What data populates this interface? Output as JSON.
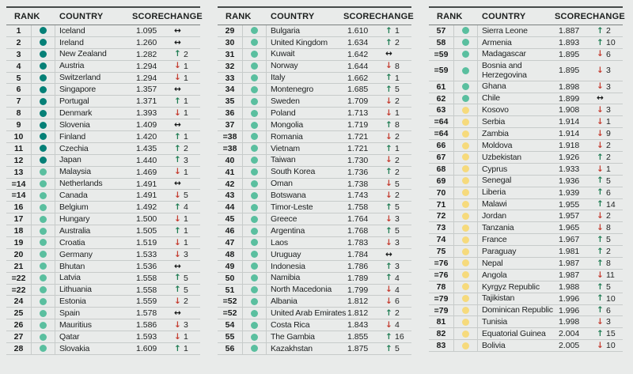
{
  "colors": {
    "background": "#e9ebea",
    "very_high_dot": "#058077",
    "high_dot": "#5abf9f",
    "medium_dot": "#f6da7c",
    "up_arrow": "#1e7c52",
    "down_arrow": "#c53e32",
    "no_change_arrow": "#141616"
  },
  "legend": {
    "arrows": {
      "up": "↑",
      "down": "↓",
      "same": "↔"
    }
  },
  "chart_data": {
    "type": "table",
    "columns": [
      "RANK",
      "COUNTRY",
      "SCORE",
      "CHANGE"
    ],
    "row_fields": [
      "rank",
      "tier",
      "country",
      "score",
      "change_direction",
      "change_value"
    ],
    "tiers": {
      "vh": "very high",
      "h": "high",
      "m": "medium"
    },
    "tables": [
      {
        "rows": [
          [
            "1",
            "vh",
            "Iceland",
            "1.095",
            "same",
            ""
          ],
          [
            "2",
            "vh",
            "Ireland",
            "1.260",
            "same",
            ""
          ],
          [
            "3",
            "vh",
            "New Zealand",
            "1.282",
            "up",
            "2"
          ],
          [
            "4",
            "vh",
            "Austria",
            "1.294",
            "down",
            "1"
          ],
          [
            "5",
            "vh",
            "Switzerland",
            "1.294",
            "down",
            "1"
          ],
          [
            "6",
            "vh",
            "Singapore",
            "1.357",
            "same",
            ""
          ],
          [
            "7",
            "vh",
            "Portugal",
            "1.371",
            "up",
            "1"
          ],
          [
            "8",
            "vh",
            "Denmark",
            "1.393",
            "down",
            "1"
          ],
          [
            "9",
            "vh",
            "Slovenia",
            "1.409",
            "same",
            ""
          ],
          [
            "10",
            "vh",
            "Finland",
            "1.420",
            "up",
            "1"
          ],
          [
            "11",
            "vh",
            "Czechia",
            "1.435",
            "up",
            "2"
          ],
          [
            "12",
            "vh",
            "Japan",
            "1.440",
            "up",
            "3"
          ],
          [
            "13",
            "h",
            "Malaysia",
            "1.469",
            "down",
            "1"
          ],
          [
            "=14",
            "h",
            "Netherlands",
            "1.491",
            "same",
            ""
          ],
          [
            "=14",
            "h",
            "Canada",
            "1.491",
            "down",
            "5"
          ],
          [
            "16",
            "h",
            "Belgium",
            "1.492",
            "up",
            "4"
          ],
          [
            "17",
            "h",
            "Hungary",
            "1.500",
            "down",
            "1"
          ],
          [
            "18",
            "h",
            "Australia",
            "1.505",
            "up",
            "1"
          ],
          [
            "19",
            "h",
            "Croatia",
            "1.519",
            "down",
            "1"
          ],
          [
            "20",
            "h",
            "Germany",
            "1.533",
            "down",
            "3"
          ],
          [
            "21",
            "h",
            "Bhutan",
            "1.536",
            "same",
            ""
          ],
          [
            "=22",
            "h",
            "Latvia",
            "1.558",
            "up",
            "5"
          ],
          [
            "=22",
            "h",
            "Lithuania",
            "1.558",
            "up",
            "5"
          ],
          [
            "24",
            "h",
            "Estonia",
            "1.559",
            "down",
            "2"
          ],
          [
            "25",
            "h",
            "Spain",
            "1.578",
            "same",
            ""
          ],
          [
            "26",
            "h",
            "Mauritius",
            "1.586",
            "down",
            "3"
          ],
          [
            "27",
            "h",
            "Qatar",
            "1.593",
            "down",
            "1"
          ],
          [
            "28",
            "h",
            "Slovakia",
            "1.609",
            "up",
            "1"
          ]
        ]
      },
      {
        "rows": [
          [
            "29",
            "h",
            "Bulgaria",
            "1.610",
            "up",
            "1"
          ],
          [
            "30",
            "h",
            "United Kingdom",
            "1.634",
            "up",
            "2"
          ],
          [
            "31",
            "h",
            "Kuwait",
            "1.642",
            "same",
            ""
          ],
          [
            "32",
            "h",
            "Norway",
            "1.644",
            "down",
            "8"
          ],
          [
            "33",
            "h",
            "Italy",
            "1.662",
            "up",
            "1"
          ],
          [
            "34",
            "h",
            "Montenegro",
            "1.685",
            "up",
            "5"
          ],
          [
            "35",
            "h",
            "Sweden",
            "1.709",
            "down",
            "2"
          ],
          [
            "36",
            "h",
            "Poland",
            "1.713",
            "down",
            "1"
          ],
          [
            "37",
            "h",
            "Mongolia",
            "1.719",
            "up",
            "8"
          ],
          [
            "=38",
            "h",
            "Romania",
            "1.721",
            "down",
            "2"
          ],
          [
            "=38",
            "h",
            "Vietnam",
            "1.721",
            "up",
            "1"
          ],
          [
            "40",
            "h",
            "Taiwan",
            "1.730",
            "down",
            "2"
          ],
          [
            "41",
            "h",
            "South Korea",
            "1.736",
            "up",
            "2"
          ],
          [
            "42",
            "h",
            "Oman",
            "1.738",
            "down",
            "5"
          ],
          [
            "43",
            "h",
            "Botswana",
            "1.743",
            "down",
            "2"
          ],
          [
            "44",
            "h",
            "Timor-Leste",
            "1.758",
            "up",
            "5"
          ],
          [
            "45",
            "h",
            "Greece",
            "1.764",
            "down",
            "3"
          ],
          [
            "46",
            "h",
            "Argentina",
            "1.768",
            "up",
            "5"
          ],
          [
            "47",
            "h",
            "Laos",
            "1.783",
            "down",
            "3"
          ],
          [
            "48",
            "h",
            "Uruguay",
            "1.784",
            "same",
            ""
          ],
          [
            "49",
            "h",
            "Indonesia",
            "1.786",
            "up",
            "3"
          ],
          [
            "50",
            "h",
            "Namibia",
            "1.789",
            "up",
            "4"
          ],
          [
            "51",
            "h",
            "North Macedonia",
            "1.799",
            "down",
            "4"
          ],
          [
            "=52",
            "h",
            "Albania",
            "1.812",
            "down",
            "6"
          ],
          [
            "=52",
            "h",
            "United Arab Emirates",
            "1.812",
            "up",
            "2"
          ],
          [
            "54",
            "h",
            "Costa Rica",
            "1.843",
            "down",
            "4"
          ],
          [
            "55",
            "h",
            "The Gambia",
            "1.855",
            "up",
            "16"
          ],
          [
            "56",
            "h",
            "Kazakhstan",
            "1.875",
            "up",
            "5"
          ]
        ]
      },
      {
        "rows": [
          [
            "57",
            "h",
            "Sierra Leone",
            "1.887",
            "up",
            "2"
          ],
          [
            "58",
            "h",
            "Armenia",
            "1.893",
            "up",
            "10"
          ],
          [
            "=59",
            "h",
            "Madagascar",
            "1.895",
            "down",
            "6"
          ],
          [
            "=59",
            "h",
            "Bosnia and Herzegovina",
            "1.895",
            "down",
            "3"
          ],
          [
            "61",
            "h",
            "Ghana",
            "1.898",
            "down",
            "3"
          ],
          [
            "62",
            "h",
            "Chile",
            "1.899",
            "same",
            ""
          ],
          [
            "63",
            "m",
            "Kosovo",
            "1.908",
            "down",
            "3"
          ],
          [
            "=64",
            "m",
            "Serbia",
            "1.914",
            "down",
            "1"
          ],
          [
            "=64",
            "m",
            "Zambia",
            "1.914",
            "down",
            "9"
          ],
          [
            "66",
            "m",
            "Moldova",
            "1.918",
            "down",
            "2"
          ],
          [
            "67",
            "m",
            "Uzbekistan",
            "1.926",
            "up",
            "2"
          ],
          [
            "68",
            "m",
            "Cyprus",
            "1.933",
            "down",
            "1"
          ],
          [
            "69",
            "m",
            "Senegal",
            "1.936",
            "up",
            "5"
          ],
          [
            "70",
            "m",
            "Liberia",
            "1.939",
            "up",
            "6"
          ],
          [
            "71",
            "m",
            "Malawi",
            "1.955",
            "up",
            "14"
          ],
          [
            "72",
            "m",
            "Jordan",
            "1.957",
            "down",
            "2"
          ],
          [
            "73",
            "m",
            "Tanzania",
            "1.965",
            "down",
            "8"
          ],
          [
            "74",
            "m",
            "France",
            "1.967",
            "up",
            "5"
          ],
          [
            "75",
            "m",
            "Paraguay",
            "1.981",
            "up",
            "2"
          ],
          [
            "=76",
            "m",
            "Nepal",
            "1.987",
            "up",
            "8"
          ],
          [
            "=76",
            "m",
            "Angola",
            "1.987",
            "down",
            "11"
          ],
          [
            "78",
            "m",
            "Kyrgyz Republic",
            "1.988",
            "up",
            "5"
          ],
          [
            "=79",
            "m",
            "Tajikistan",
            "1.996",
            "up",
            "10"
          ],
          [
            "=79",
            "m",
            "Dominican Republic",
            "1.996",
            "up",
            "6"
          ],
          [
            "81",
            "m",
            "Tunisia",
            "1.998",
            "down",
            "3"
          ],
          [
            "82",
            "m",
            "Equatorial Guinea",
            "2.004",
            "up",
            "15"
          ],
          [
            "83",
            "m",
            "Bolivia",
            "2.005",
            "down",
            "10"
          ]
        ]
      }
    ]
  }
}
